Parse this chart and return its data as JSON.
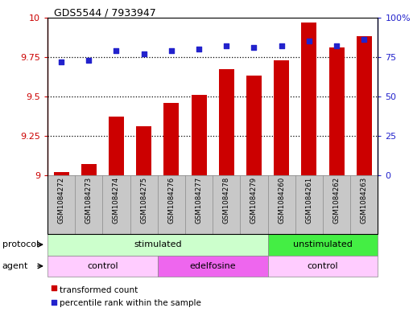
{
  "title": "GDS5544 / 7933947",
  "samples": [
    "GSM1084272",
    "GSM1084273",
    "GSM1084274",
    "GSM1084275",
    "GSM1084276",
    "GSM1084277",
    "GSM1084278",
    "GSM1084279",
    "GSM1084260",
    "GSM1084261",
    "GSM1084262",
    "GSM1084263"
  ],
  "bar_values": [
    9.02,
    9.07,
    9.37,
    9.31,
    9.46,
    9.51,
    9.67,
    9.63,
    9.73,
    9.97,
    9.81,
    9.88
  ],
  "scatter_values": [
    72,
    73,
    79,
    77,
    79,
    80,
    82,
    81,
    82,
    85,
    82,
    86
  ],
  "bar_color": "#cc0000",
  "scatter_color": "#2222cc",
  "ylim_left": [
    9.0,
    10.0
  ],
  "ylim_right": [
    0,
    100
  ],
  "yticks_left": [
    9.0,
    9.25,
    9.5,
    9.75,
    10.0
  ],
  "yticks_right": [
    0,
    25,
    50,
    75,
    100
  ],
  "ytick_labels_left": [
    "9",
    "9.25",
    "9.5",
    "9.75",
    "10"
  ],
  "ytick_labels_right": [
    "0",
    "25",
    "50",
    "75",
    "100%"
  ],
  "grid_lines": [
    9.25,
    9.5,
    9.75
  ],
  "protocol_groups": [
    {
      "label": "stimulated",
      "start": 0,
      "end": 8,
      "color": "#ccffcc"
    },
    {
      "label": "unstimulated",
      "start": 8,
      "end": 12,
      "color": "#44ee44"
    }
  ],
  "agent_groups": [
    {
      "label": "control",
      "start": 0,
      "end": 4,
      "color": "#ffccff"
    },
    {
      "label": "edelfosine",
      "start": 4,
      "end": 8,
      "color": "#ee66ee"
    },
    {
      "label": "control",
      "start": 8,
      "end": 12,
      "color": "#ffccff"
    }
  ],
  "legend_bar_label": "transformed count",
  "legend_scatter_label": "percentile rank within the sample",
  "bar_width": 0.55,
  "bar_base": 9.0,
  "gray_color": "#c8c8c8",
  "protocol_label": "protocol",
  "agent_label": "agent"
}
